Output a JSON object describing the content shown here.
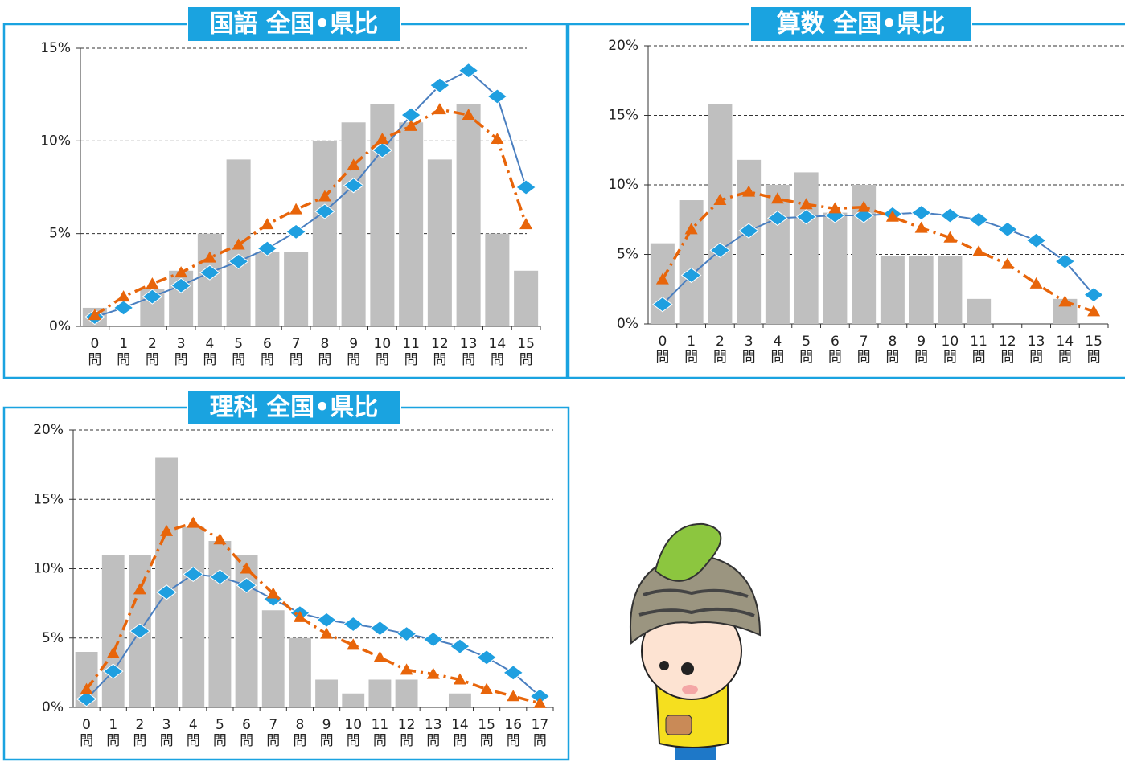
{
  "chart_data": [
    {
      "type": "combo",
      "title": "国語 全国•県比",
      "categories": [
        "0問",
        "1問",
        "2問",
        "3問",
        "4問",
        "5問",
        "6問",
        "7問",
        "8問",
        "9問",
        "10問",
        "11問",
        "12問",
        "13問",
        "14問",
        "15問"
      ],
      "ylim": [
        0,
        15
      ],
      "yticks": [
        {
          "value": 0,
          "label": "0%"
        },
        {
          "value": 5,
          "label": "5%"
        },
        {
          "value": 10,
          "label": "10%"
        },
        {
          "value": 15,
          "label": "15%"
        }
      ],
      "grid": true,
      "series": [
        {
          "type": "bar",
          "color": "#bfbfbf",
          "values": [
            1,
            0,
            2,
            3,
            5,
            9,
            4,
            4,
            10,
            11,
            12,
            11,
            9,
            12,
            5,
            3
          ]
        },
        {
          "type": "line",
          "marker": "diamond",
          "line_style": "solid",
          "color": "#1f9fe0",
          "values": [
            0.5,
            1.0,
            1.6,
            2.2,
            2.9,
            3.5,
            4.2,
            5.1,
            6.2,
            7.6,
            9.5,
            11.4,
            13.0,
            13.8,
            12.4,
            7.5
          ]
        },
        {
          "type": "line",
          "marker": "triangle",
          "line_style": "dashdot",
          "color": "#e8650a",
          "values": [
            0.6,
            1.6,
            2.3,
            2.9,
            3.7,
            4.4,
            5.5,
            6.3,
            7.0,
            8.7,
            10.1,
            10.8,
            11.7,
            11.4,
            10.1,
            5.5
          ]
        }
      ]
    },
    {
      "type": "combo",
      "title": "算数 全国•県比",
      "categories": [
        "0問",
        "1問",
        "2問",
        "3問",
        "4問",
        "5問",
        "6問",
        "7問",
        "8問",
        "9問",
        "10問",
        "11問",
        "12問",
        "13問",
        "14問",
        "15問"
      ],
      "ylim": [
        0,
        20
      ],
      "yticks": [
        {
          "value": 0,
          "label": "0%"
        },
        {
          "value": 5,
          "label": "5%"
        },
        {
          "value": 10,
          "label": "10%"
        },
        {
          "value": 15,
          "label": "15%"
        },
        {
          "value": 20,
          "label": "20%"
        }
      ],
      "grid": true,
      "series": [
        {
          "type": "bar",
          "color": "#bfbfbf",
          "values": [
            5.8,
            8.9,
            15.8,
            11.8,
            10,
            10.9,
            8,
            10,
            4.9,
            4.9,
            4.9,
            1.8,
            0,
            0,
            1.8,
            0
          ]
        },
        {
          "type": "line",
          "marker": "diamond",
          "line_style": "solid",
          "color": "#1f9fe0",
          "values": [
            1.4,
            3.5,
            5.3,
            6.7,
            7.6,
            7.7,
            7.8,
            7.8,
            7.9,
            8.0,
            7.8,
            7.5,
            6.8,
            6.0,
            4.5,
            2.1
          ]
        },
        {
          "type": "line",
          "marker": "triangle",
          "line_style": "dashdot",
          "color": "#e8650a",
          "values": [
            3.2,
            6.8,
            8.9,
            9.5,
            9.0,
            8.6,
            8.3,
            8.4,
            7.7,
            6.9,
            6.2,
            5.2,
            4.3,
            2.9,
            1.6,
            0.9
          ]
        }
      ]
    },
    {
      "type": "combo",
      "title": "理科 全国•県比",
      "categories": [
        "0問",
        "1問",
        "2問",
        "3問",
        "4問",
        "5問",
        "6問",
        "7問",
        "8問",
        "9問",
        "10問",
        "11問",
        "12問",
        "13問",
        "14問",
        "15問",
        "16問",
        "17問"
      ],
      "ylim": [
        0,
        20
      ],
      "yticks": [
        {
          "value": 0,
          "label": "0%"
        },
        {
          "value": 5,
          "label": "5%"
        },
        {
          "value": 10,
          "label": "10%"
        },
        {
          "value": 15,
          "label": "15%"
        },
        {
          "value": 20,
          "label": "20%"
        }
      ],
      "grid": true,
      "series": [
        {
          "type": "bar",
          "color": "#bfbfbf",
          "values": [
            4,
            11,
            11,
            18,
            13,
            12,
            11,
            7,
            5,
            2,
            1,
            2,
            2,
            0,
            1,
            0,
            0,
            0
          ]
        },
        {
          "type": "line",
          "marker": "diamond",
          "line_style": "solid",
          "color": "#1f9fe0",
          "values": [
            0.6,
            2.6,
            5.5,
            8.3,
            9.6,
            9.4,
            8.8,
            7.8,
            6.8,
            6.3,
            6.0,
            5.7,
            5.3,
            4.9,
            4.4,
            3.6,
            2.5,
            0.8
          ]
        },
        {
          "type": "line",
          "marker": "triangle",
          "line_style": "dashdot",
          "color": "#e8650a",
          "values": [
            1.3,
            3.9,
            8.5,
            12.7,
            13.3,
            12.1,
            10.0,
            8.2,
            6.5,
            5.3,
            4.5,
            3.6,
            2.7,
            2.4,
            2.0,
            1.3,
            0.8,
            0.3
          ]
        }
      ]
    }
  ]
}
